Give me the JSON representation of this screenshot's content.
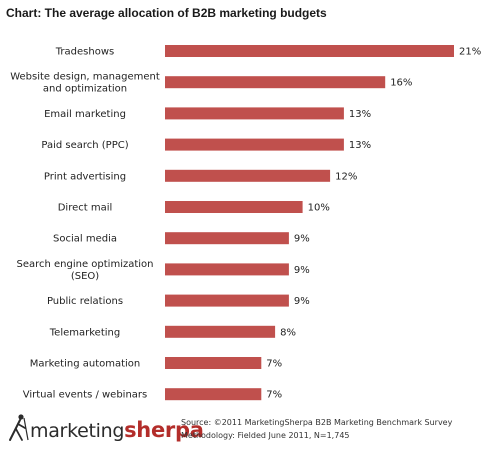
{
  "header": {
    "title": "Chart: The average allocation of B2B marketing budgets"
  },
  "chart_data": {
    "type": "bar",
    "orientation": "horizontal",
    "categories": [
      [
        "Tradeshows"
      ],
      [
        "Website design, management",
        "and optimization"
      ],
      [
        "Email marketing"
      ],
      [
        "Paid search (PPC)"
      ],
      [
        "Print advertising"
      ],
      [
        "Direct mail"
      ],
      [
        "Social media"
      ],
      [
        "Search engine optimization",
        "(SEO)"
      ],
      [
        "Public relations"
      ],
      [
        "Telemarketing"
      ],
      [
        "Marketing automation"
      ],
      [
        "Virtual events / webinars"
      ]
    ],
    "values": [
      21,
      16,
      13,
      13,
      12,
      10,
      9,
      9,
      9,
      8,
      7,
      7
    ],
    "value_labels": [
      "21%",
      "16%",
      "13%",
      "13%",
      "12%",
      "10%",
      "9%",
      "9%",
      "9%",
      "8%",
      "7%",
      "7%"
    ],
    "xlim": [
      0,
      21
    ],
    "grid": false,
    "legend": "none",
    "bar_color": "#c0504d"
  },
  "footer": {
    "logo": {
      "text_part1": "marketing",
      "text_part2": "sherpa",
      "icon": "mountain-climber-icon",
      "color_accent": "#b32d2a"
    },
    "source_line": "Source: ©2011 MarketingSherpa B2B Marketing Benchmark Survey",
    "methodology_line": "Methodology: Fielded June 2011, N=1,745"
  }
}
